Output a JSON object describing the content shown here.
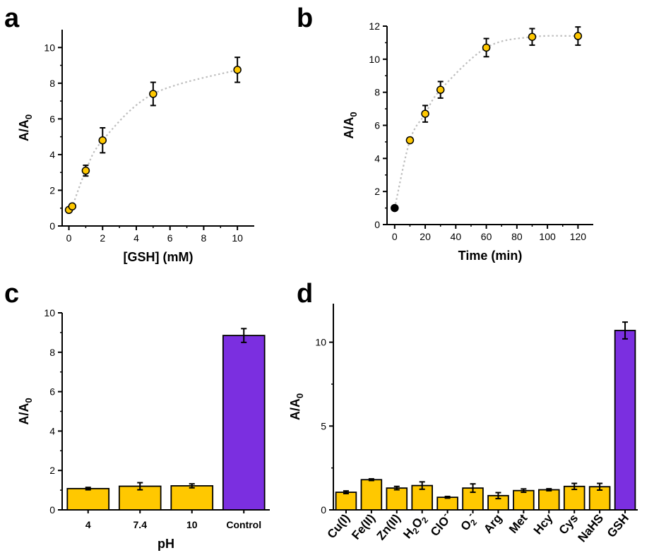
{
  "figure": {
    "panels": [
      "a",
      "b",
      "c",
      "d"
    ]
  },
  "colors": {
    "yellow": "#FFC800",
    "purple": "#7B2FE0",
    "dotted_line": "#BEBEBE",
    "black": "#000000"
  },
  "chart_data": [
    {
      "panel": "a",
      "type": "scatter",
      "xlabel": "[GSH] (mM)",
      "ylabel_main": "A/A",
      "ylabel_sub": "0",
      "xlim": [
        -0.4,
        11
      ],
      "ylim": [
        0,
        11
      ],
      "xticks": [
        0,
        2,
        4,
        6,
        8,
        10
      ],
      "yticks": [
        0,
        2,
        4,
        6,
        8,
        10
      ],
      "points": [
        {
          "x": 0,
          "y": 0.9,
          "err": 0.12
        },
        {
          "x": 0.2,
          "y": 1.1,
          "err": 0.1
        },
        {
          "x": 1,
          "y": 3.1,
          "err": 0.3
        },
        {
          "x": 2,
          "y": 4.8,
          "err": 0.7
        },
        {
          "x": 5,
          "y": 7.4,
          "err": 0.65
        },
        {
          "x": 10,
          "y": 8.75,
          "err": 0.7
        }
      ],
      "connector": "dotted"
    },
    {
      "panel": "b",
      "type": "scatter",
      "xlabel": "Time (min)",
      "ylabel_main": "A/A",
      "ylabel_sub": "0",
      "xlim": [
        -5,
        130
      ],
      "ylim": [
        0,
        12
      ],
      "xticks": [
        0,
        20,
        40,
        60,
        80,
        100,
        120
      ],
      "yticks": [
        0,
        2,
        4,
        6,
        8,
        10,
        12
      ],
      "points": [
        {
          "x": 0,
          "y": 1.0,
          "err": 0.05,
          "color": "black"
        },
        {
          "x": 10,
          "y": 5.1,
          "err": 0.15
        },
        {
          "x": 20,
          "y": 6.7,
          "err": 0.5
        },
        {
          "x": 30,
          "y": 8.15,
          "err": 0.5
        },
        {
          "x": 60,
          "y": 10.7,
          "err": 0.55
        },
        {
          "x": 90,
          "y": 11.35,
          "err": 0.5
        },
        {
          "x": 120,
          "y": 11.4,
          "err": 0.55
        }
      ],
      "connector": "dotted"
    },
    {
      "panel": "c",
      "type": "bar",
      "xlabel": "pH",
      "ylabel_main": "A/A",
      "ylabel_sub": "0",
      "ylim": [
        0,
        10
      ],
      "yticks": [
        0,
        2,
        4,
        6,
        8,
        10
      ],
      "categories": [
        "4",
        "7.4",
        "10",
        "Control"
      ],
      "values": [
        1.08,
        1.2,
        1.22,
        8.85
      ],
      "errors": [
        0.06,
        0.18,
        0.1,
        0.35
      ],
      "bar_colors": [
        "yellow",
        "yellow",
        "yellow",
        "purple"
      ]
    },
    {
      "panel": "d",
      "type": "bar",
      "xlabel": "",
      "ylabel_main": "A/A",
      "ylabel_sub": "0",
      "ylim": [
        0,
        12.3
      ],
      "yticks": [
        0,
        5,
        10
      ],
      "categories": [
        {
          "base": "Cu(I)"
        },
        {
          "base": "Fe(II)"
        },
        {
          "base": "Zn(II)"
        },
        {
          "base": "H",
          "sub1": "2",
          "mid": "O",
          "sub2": "2"
        },
        {
          "base": "ClO",
          "sup": "-"
        },
        {
          "base": "O",
          "sub1": "2",
          "sup": "-"
        },
        {
          "base": "Arg"
        },
        {
          "base": "Met"
        },
        {
          "base": "Hcy"
        },
        {
          "base": "Cys"
        },
        {
          "base": "NaHS"
        },
        {
          "base": "GSH"
        }
      ],
      "values": [
        1.05,
        1.8,
        1.3,
        1.45,
        0.75,
        1.3,
        0.85,
        1.15,
        1.2,
        1.4,
        1.38,
        10.7
      ],
      "errors": [
        0.08,
        0.05,
        0.1,
        0.22,
        0.05,
        0.25,
        0.18,
        0.1,
        0.06,
        0.18,
        0.2,
        0.5
      ],
      "bar_colors": [
        "yellow",
        "yellow",
        "yellow",
        "yellow",
        "yellow",
        "yellow",
        "yellow",
        "yellow",
        "yellow",
        "yellow",
        "yellow",
        "purple"
      ]
    }
  ]
}
